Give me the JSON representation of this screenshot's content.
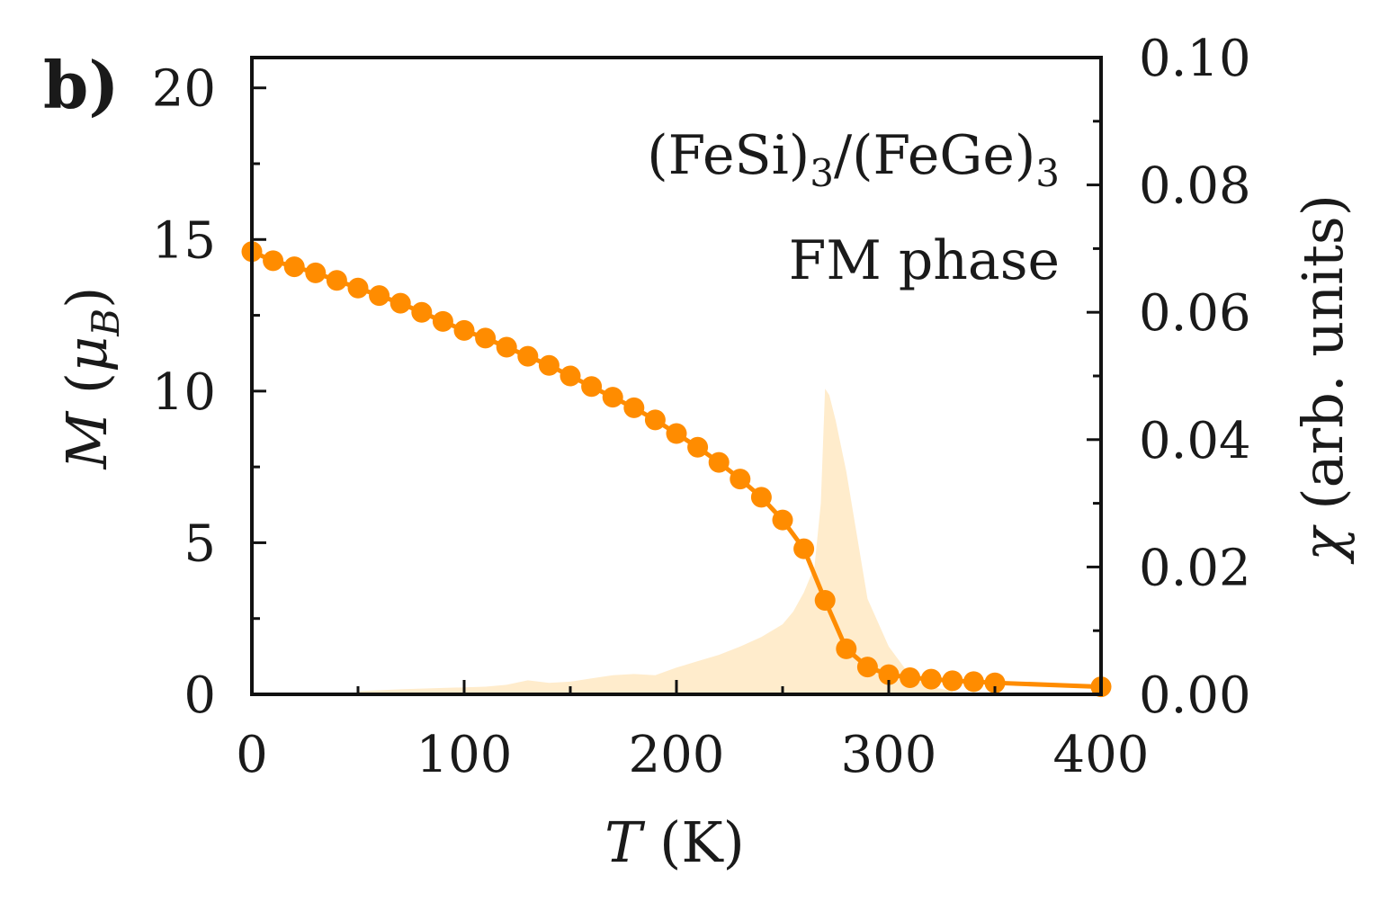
{
  "panel_label": "b)",
  "chart_data": {
    "type": "line",
    "title": "",
    "xlabel": "T (K)",
    "xlabel_var": "T",
    "xlabel_unit": " (K)",
    "ylabel": "M (μB)",
    "ylabel_var": "M",
    "ylabel_unit_open": " (",
    "ylabel_unit_mu": "μ",
    "ylabel_unit_sub": "B",
    "ylabel_unit_close": ")",
    "y2label": "χ (arb. units)",
    "y2label_var": "χ",
    "y2label_unit": " (arb. units)",
    "xlim": [
      0,
      400
    ],
    "ylim": [
      0,
      21
    ],
    "y2lim": [
      0,
      0.1
    ],
    "xticks": [
      0,
      100,
      200,
      300,
      400
    ],
    "xtick_labels": [
      "0",
      "100",
      "200",
      "300",
      "400"
    ],
    "yticks": [
      0,
      5,
      10,
      15,
      20
    ],
    "ytick_labels": [
      "0",
      "5",
      "10",
      "15",
      "20"
    ],
    "y2ticks": [
      0,
      0.02,
      0.04,
      0.06,
      0.08,
      0.1
    ],
    "y2tick_labels": [
      "0.00",
      "0.02",
      "0.04",
      "0.06",
      "0.08",
      "0.10"
    ],
    "grid": false,
    "annotations": {
      "system": "(FeSi)",
      "system_sub": "3",
      "system_sep": "/(FeGe)",
      "system_sub2": "3",
      "phase": "FM phase"
    },
    "series": [
      {
        "name": "M",
        "axis": "left",
        "color": "#ff8c00",
        "marker": "circle",
        "x": [
          0,
          10,
          20,
          30,
          40,
          50,
          60,
          70,
          80,
          90,
          100,
          110,
          120,
          130,
          140,
          150,
          160,
          170,
          180,
          190,
          200,
          210,
          220,
          230,
          240,
          250,
          260,
          270,
          280,
          290,
          300,
          310,
          320,
          330,
          340,
          350,
          400
        ],
        "y": [
          14.6,
          14.3,
          14.1,
          13.9,
          13.65,
          13.4,
          13.15,
          12.9,
          12.6,
          12.3,
          12.0,
          11.75,
          11.45,
          11.15,
          10.85,
          10.5,
          10.15,
          9.8,
          9.45,
          9.05,
          8.6,
          8.15,
          7.65,
          7.1,
          6.5,
          5.75,
          4.8,
          3.1,
          1.5,
          0.9,
          0.65,
          0.55,
          0.5,
          0.45,
          0.42,
          0.38,
          0.25
        ]
      },
      {
        "name": "χ",
        "axis": "right",
        "type": "area",
        "color": "#ffeccc",
        "x": [
          50,
          70,
          90,
          110,
          120,
          130,
          140,
          150,
          160,
          170,
          180,
          190,
          200,
          210,
          220,
          230,
          240,
          250,
          255,
          260,
          265,
          268,
          270,
          272,
          275,
          280,
          285,
          290,
          300,
          310,
          320,
          330
        ],
        "y": [
          0.0005,
          0.0008,
          0.001,
          0.0012,
          0.0015,
          0.0022,
          0.0018,
          0.002,
          0.0025,
          0.003,
          0.0032,
          0.003,
          0.0042,
          0.0052,
          0.0062,
          0.0075,
          0.009,
          0.011,
          0.013,
          0.016,
          0.02,
          0.03,
          0.048,
          0.047,
          0.043,
          0.035,
          0.025,
          0.015,
          0.0075,
          0.003,
          0.0012,
          0.0005
        ]
      }
    ]
  }
}
